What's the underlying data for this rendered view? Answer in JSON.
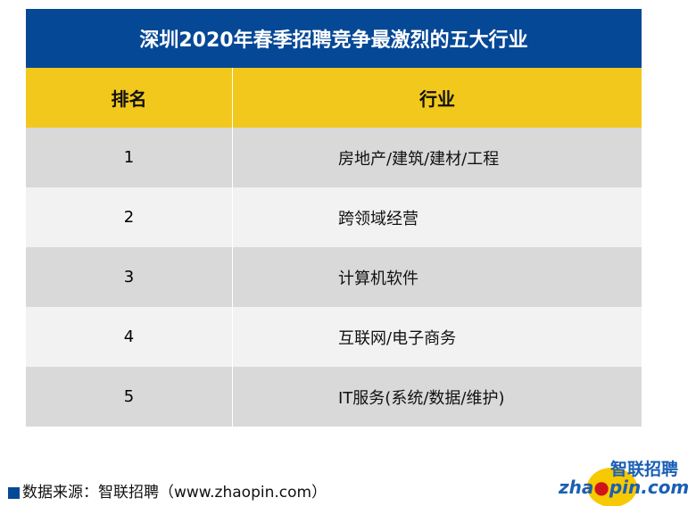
{
  "title": "深圳2020年春季招聘竞争最激烈的五大行业",
  "headers": {
    "rank": "排名",
    "industry": "行业"
  },
  "rows": [
    {
      "rank": "1",
      "industry": "房地产/建筑/建材/工程"
    },
    {
      "rank": "2",
      "industry": "跨领域经营"
    },
    {
      "rank": "3",
      "industry": "计算机软件"
    },
    {
      "rank": "4",
      "industry": "互联网/电子商务"
    },
    {
      "rank": "5",
      "industry": "IT服务(系统/数据/维护)"
    }
  ],
  "source": "数据来源：智联招聘（www.zhaopin.com）",
  "logo": {
    "cn": "智联招聘",
    "en": "zhaopin.com"
  },
  "colors": {
    "title_bg": "#054896",
    "header_bg": "#F2C81C",
    "row_dark": "#D9D9D9",
    "row_light": "#F2F2F2"
  }
}
